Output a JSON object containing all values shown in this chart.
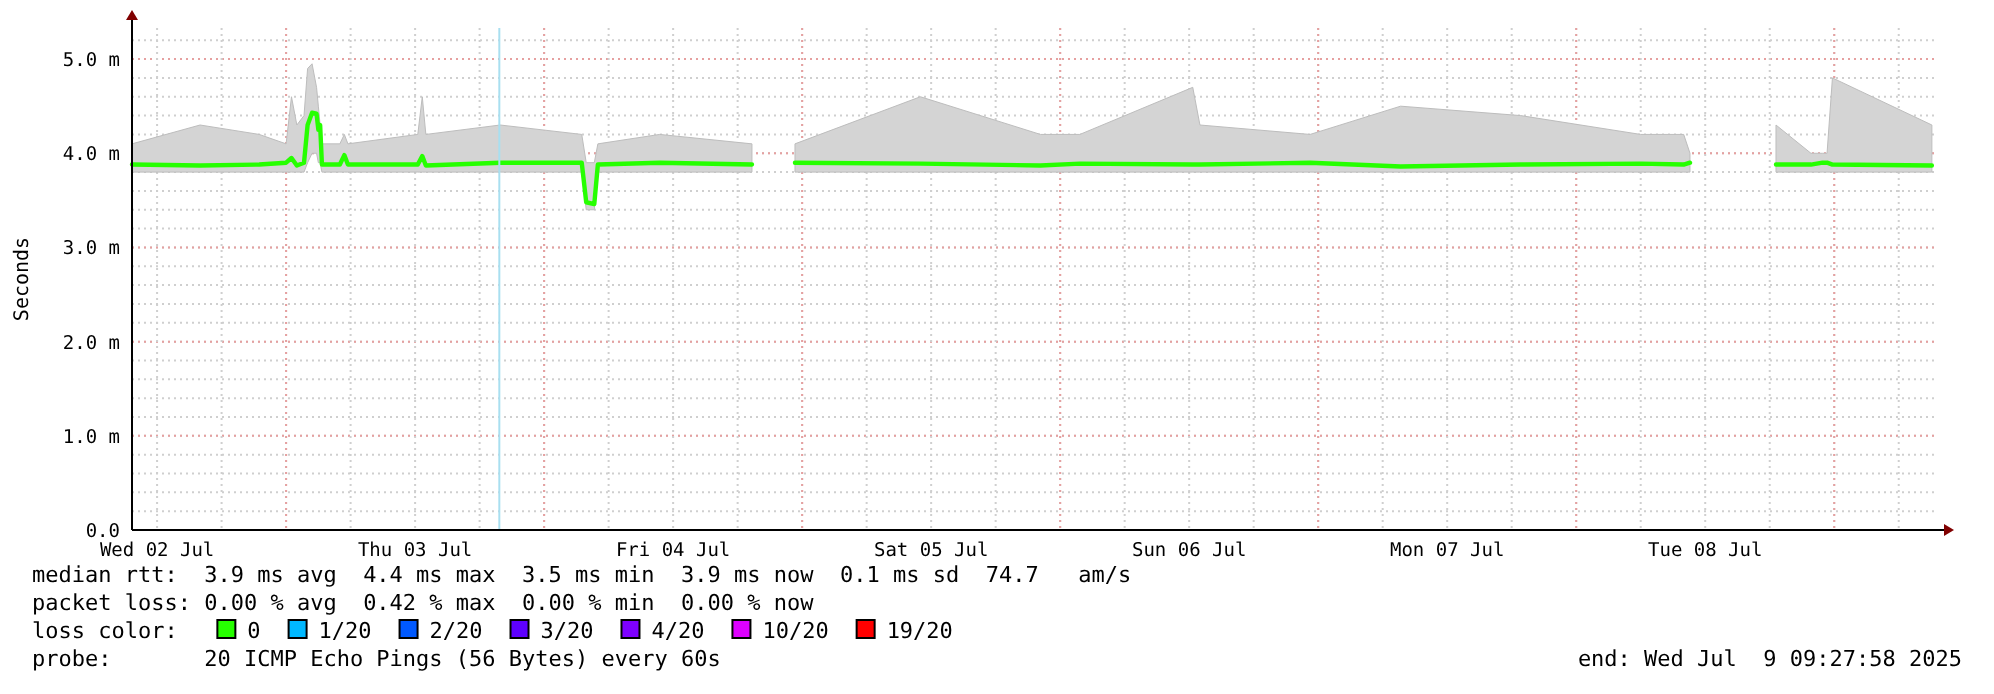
{
  "chart_data": {
    "type": "line",
    "ylabel": "Seconds",
    "legend_title": "loss color:",
    "legend": "bottom",
    "grid": true,
    "line_style": "solid",
    "marker": "none",
    "xlim": [
      "2025-07-02T09:40",
      "2025-07-09T09:28"
    ],
    "xticks": [
      {
        "value": "2025-07-02T12:00",
        "label": "Wed 02 Jul"
      },
      {
        "value": "2025-07-03T12:00",
        "label": "Thu 03 Jul"
      },
      {
        "value": "2025-07-04T12:00",
        "label": "Fri 04 Jul"
      },
      {
        "value": "2025-07-05T12:00",
        "label": "Sat 05 Jul"
      },
      {
        "value": "2025-07-06T12:00",
        "label": "Sun 06 Jul"
      },
      {
        "value": "2025-07-07T12:00",
        "label": "Mon 07 Jul"
      },
      {
        "value": "2025-07-08T12:00",
        "label": "Tue 08 Jul"
      }
    ],
    "ylim": [
      0,
      5.33
    ],
    "yticks": [
      {
        "value": 0,
        "label": "0.0"
      },
      {
        "value": 1,
        "label": "1.0 m"
      },
      {
        "value": 2,
        "label": "2.0 m"
      },
      {
        "value": 3,
        "label": "3.0 m"
      },
      {
        "value": 4,
        "label": "4.0 m"
      },
      {
        "value": 5,
        "label": "5.0 m"
      }
    ],
    "ref_lines": [
      {
        "axis": "x",
        "value": "2025-07-03T19:50",
        "label": null,
        "color": "#a8dff0"
      }
    ],
    "series": [
      {
        "name": "0",
        "color": "#26ff00",
        "x": [
          "2025-07-02T09:40",
          "2025-07-02T16:00",
          "2025-07-02T21:30",
          "2025-07-03T00:00",
          "2025-07-03T00:30",
          "2025-07-03T01:00",
          "2025-07-03T01:40",
          "2025-07-03T02:00",
          "2025-07-03T02:25",
          "2025-07-03T02:50",
          "2025-07-03T03:00",
          "2025-07-03T03:10",
          "2025-07-03T03:20",
          "2025-07-03T05:00",
          "2025-07-03T05:25",
          "2025-07-03T05:45",
          "2025-07-03T12:15",
          "2025-07-03T12:40",
          "2025-07-03T13:00",
          "2025-07-03T19:55",
          "2025-07-04T03:30",
          "2025-07-04T03:55",
          "2025-07-04T04:40",
          "2025-07-04T05:00",
          "2025-07-04T10:45",
          "2025-07-04T19:20",
          "2025-07-04T20:00",
          "2025-07-04T23:20",
          "2025-07-05T11:00",
          "2025-07-05T22:10",
          "2025-07-06T01:50",
          "2025-07-06T12:20",
          "2025-07-06T13:00",
          "2025-07-06T23:15",
          "2025-07-07T07:40",
          "2025-07-07T18:50",
          "2025-07-08T06:00",
          "2025-07-08T10:00",
          "2025-07-08T10:35",
          "2025-07-08T11:00",
          "2025-07-08T18:35",
          "2025-07-08T21:50",
          "2025-07-08T22:55",
          "2025-07-08T23:20",
          "2025-07-08T23:50",
          "2025-07-09T09:05"
        ],
        "values": [
          3.88,
          3.87,
          3.88,
          3.9,
          3.95,
          3.87,
          3.9,
          4.3,
          4.43,
          4.42,
          4.25,
          4.3,
          3.88,
          3.88,
          3.98,
          3.88,
          3.88,
          3.97,
          3.87,
          3.9,
          3.9,
          3.48,
          3.46,
          3.88,
          3.9,
          3.88,
          null,
          3.9,
          3.89,
          3.87,
          3.89,
          3.88,
          3.88,
          3.9,
          3.86,
          3.88,
          3.89,
          3.88,
          3.9,
          null,
          3.88,
          3.88,
          3.9,
          3.9,
          3.88,
          3.87
        ],
        "lower": [
          3.8,
          3.8,
          3.8,
          3.8,
          3.8,
          3.8,
          3.8,
          3.9,
          4.0,
          4.0,
          3.9,
          3.9,
          3.8,
          3.8,
          3.8,
          3.8,
          3.8,
          3.8,
          3.8,
          3.8,
          3.8,
          3.4,
          3.4,
          3.8,
          3.8,
          3.8,
          null,
          3.8,
          3.8,
          3.8,
          3.8,
          3.8,
          3.8,
          3.8,
          3.8,
          3.8,
          3.8,
          3.8,
          3.8,
          null,
          3.8,
          3.8,
          3.8,
          3.8,
          3.8,
          3.8
        ],
        "upper": [
          4.1,
          4.3,
          4.2,
          4.1,
          4.6,
          4.3,
          4.4,
          4.9,
          4.95,
          4.7,
          4.5,
          4.3,
          4.1,
          4.1,
          4.2,
          4.1,
          4.2,
          4.6,
          4.2,
          4.3,
          4.2,
          3.9,
          3.9,
          4.1,
          4.2,
          4.1,
          null,
          4.1,
          4.6,
          4.2,
          4.2,
          4.7,
          4.3,
          4.2,
          4.5,
          4.4,
          4.2,
          4.2,
          4.0,
          null,
          4.3,
          4.0,
          4.0,
          4.0,
          4.8,
          4.3
        ]
      },
      {
        "name": "1/20",
        "color": "#00b8ff"
      },
      {
        "name": "2/20",
        "color": "#0059ff"
      },
      {
        "name": "3/20",
        "color": "#5e00ff"
      },
      {
        "name": "4/20",
        "color": "#7e00ff"
      },
      {
        "name": "10/20",
        "color": "#dd00ff"
      },
      {
        "name": "19/20",
        "color": "#ff0000"
      }
    ],
    "annotations": [
      "median rtt:  3.9 ms avg  4.4 ms max  3.5 ms min  3.9 ms now  0.1 ms sd  74.7   am/s",
      "packet loss: 0.00 % avg  0.42 % max  0.00 % min  0.00 % now",
      "probe:       20 ICMP Echo Pings (56 Bytes) every 60s",
      "end: Wed Jul  9 09:27:58 2025"
    ]
  }
}
